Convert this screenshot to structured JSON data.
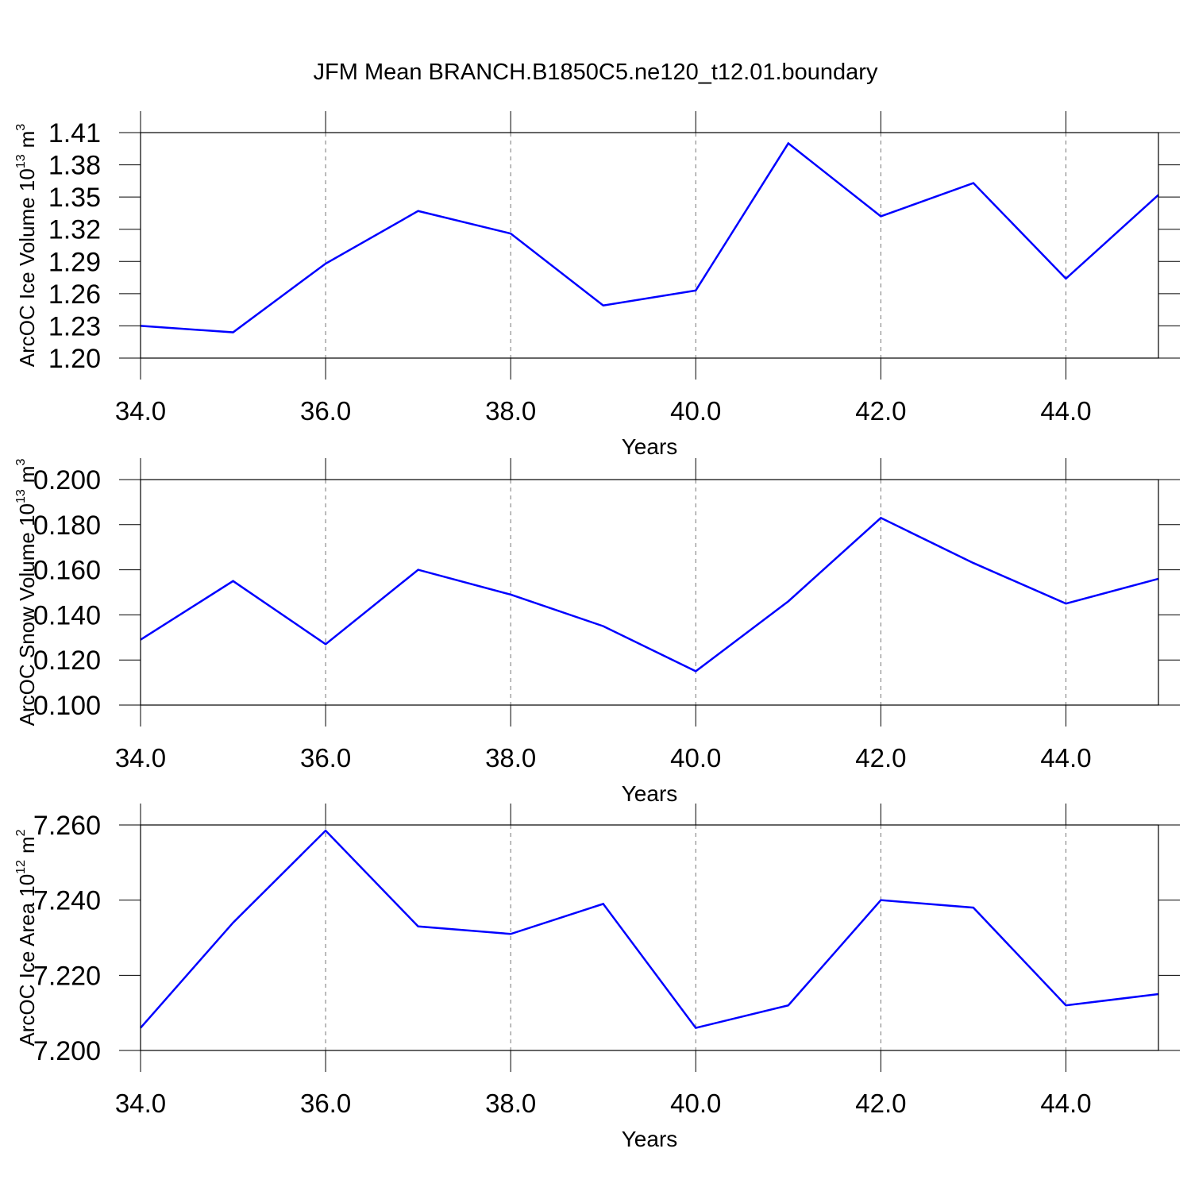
{
  "title": "JFM Mean BRANCH.B1850C5.ne120_t12.01.boundary",
  "chart_data": [
    {
      "type": "line",
      "xlabel": "Years",
      "ylabel": [
        "ArcOC Ice Volume 10",
        "13",
        "m",
        "3"
      ],
      "x": [
        34,
        35,
        36,
        37,
        38,
        39,
        40,
        41,
        42,
        43,
        44,
        45
      ],
      "series": [
        {
          "color": "#0000ff",
          "values": [
            1.23,
            1.224,
            1.288,
            1.337,
            1.316,
            1.249,
            1.263,
            1.4,
            1.332,
            1.363,
            1.274,
            1.352
          ]
        }
      ],
      "xlim": [
        34,
        45
      ],
      "ylim": [
        1.2,
        1.41
      ],
      "xticks": [
        {
          "value": 34,
          "label": "34.0"
        },
        {
          "value": 36,
          "label": "36.0"
        },
        {
          "value": 38,
          "label": "38.0"
        },
        {
          "value": 40,
          "label": "40.0"
        },
        {
          "value": 42,
          "label": "42.0"
        },
        {
          "value": 44,
          "label": "44.0"
        }
      ],
      "yticks": [
        {
          "value": 1.2,
          "label": "1.20"
        },
        1.23,
        1.26,
        1.29,
        1.32,
        1.35,
        1.38,
        1.41
      ],
      "grid": "x"
    },
    {
      "type": "line",
      "xlabel": "Years",
      "ylabel": [
        "ArcOC Snow Volume 10",
        "13",
        "m",
        "3"
      ],
      "x": [
        34,
        35,
        36,
        37,
        38,
        39,
        40,
        41,
        42,
        43,
        44,
        45
      ],
      "series": [
        {
          "color": "#0000ff",
          "values": [
            0.129,
            0.155,
            0.127,
            0.16,
            0.149,
            0.135,
            0.115,
            0.146,
            0.183,
            0.163,
            0.145,
            0.156
          ]
        }
      ],
      "xlim": [
        34,
        45
      ],
      "ylim": [
        0.1,
        0.2
      ],
      "xticks": [
        {
          "value": 34,
          "label": "34.0"
        },
        {
          "value": 36,
          "label": "36.0"
        },
        {
          "value": 38,
          "label": "38.0"
        },
        {
          "value": 40,
          "label": "40.0"
        },
        {
          "value": 42,
          "label": "42.0"
        },
        {
          "value": 44,
          "label": "44.0"
        }
      ],
      "yticks": [
        {
          "value": 0.1,
          "label": "0.100"
        },
        {
          "value": 0.12,
          "label": "0.120"
        },
        {
          "value": 0.14,
          "label": "0.140"
        },
        {
          "value": 0.16,
          "label": "0.160"
        },
        {
          "value": 0.18,
          "label": "0.180"
        },
        {
          "value": 0.2,
          "label": "0.200"
        }
      ],
      "grid": "x"
    },
    {
      "type": "line",
      "xlabel": "Years",
      "ylabel": [
        "ArcOC Ice Area 10",
        "12",
        "m",
        "2"
      ],
      "x": [
        34,
        35,
        36,
        37,
        38,
        39,
        40,
        41,
        42,
        43,
        44,
        45
      ],
      "series": [
        {
          "color": "#0000ff",
          "values": [
            7.206,
            7.234,
            7.2585,
            7.233,
            7.231,
            7.239,
            7.206,
            7.212,
            7.24,
            7.238,
            7.212,
            7.215
          ]
        }
      ],
      "xlim": [
        34,
        45
      ],
      "ylim": [
        7.2,
        7.26
      ],
      "xticks": [
        {
          "value": 34,
          "label": "34.0"
        },
        {
          "value": 36,
          "label": "36.0"
        },
        {
          "value": 38,
          "label": "38.0"
        },
        {
          "value": 40,
          "label": "40.0"
        },
        {
          "value": 42,
          "label": "42.0"
        },
        {
          "value": 44,
          "label": "44.0"
        }
      ],
      "yticks": [
        {
          "value": 7.2,
          "label": "7.200"
        },
        {
          "value": 7.22,
          "label": "7.220"
        },
        {
          "value": 7.24,
          "label": "7.240"
        },
        {
          "value": 7.26,
          "label": "7.260"
        }
      ],
      "grid": "x"
    }
  ]
}
